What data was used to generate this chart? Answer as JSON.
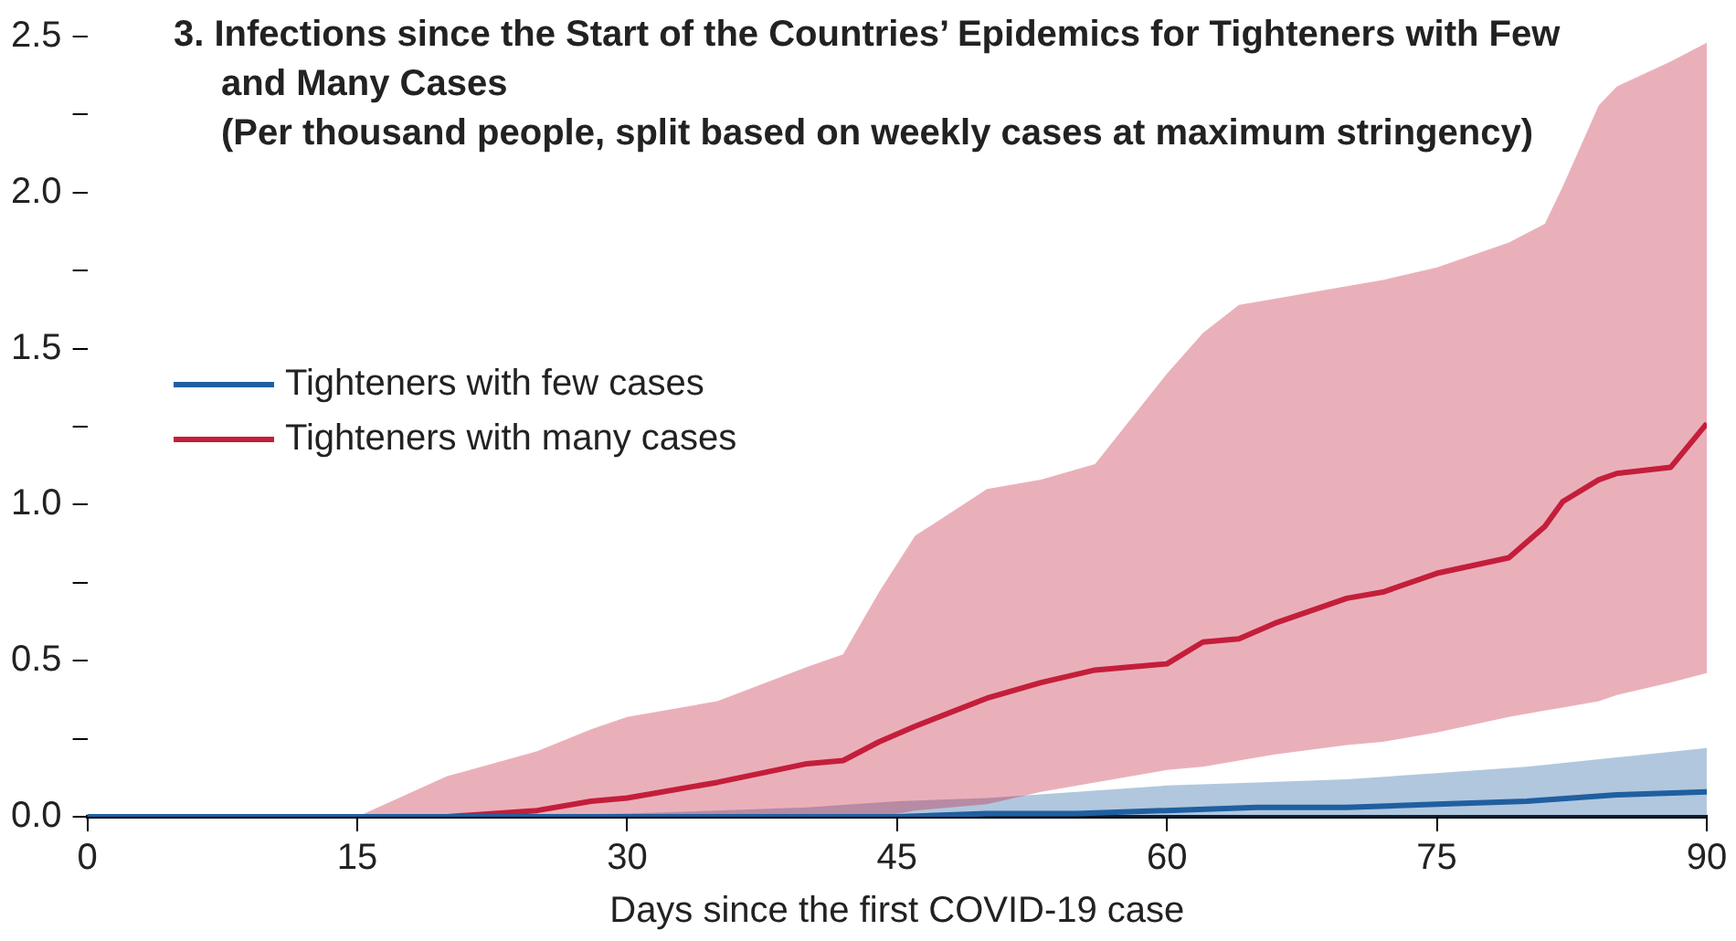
{
  "chart_data": {
    "type": "line",
    "title": "3. Infections since the Start of the Countries’ Epidemics for Tighteners with Few and Many Cases",
    "subtitle": "(Per thousand people, split based on weekly cases at maximum stringency)",
    "xlabel": "Days since the first COVID-19 case",
    "xlim": [
      0,
      90
    ],
    "xticks": [
      0,
      15,
      30,
      45,
      60,
      75,
      90
    ],
    "ylim": [
      0,
      2.5
    ],
    "yticks": [
      {
        "value": 0,
        "label": "0.0"
      },
      {
        "value": 0.25,
        "label": null
      },
      0.5,
      {
        "value": 0.75,
        "label": null
      },
      {
        "value": 1,
        "label": "1.0"
      },
      {
        "value": 1.25,
        "label": null
      },
      1.5,
      {
        "value": 1.75,
        "label": null
      },
      {
        "value": 2,
        "label": "2.0"
      },
      {
        "value": 2.25,
        "label": null
      },
      2.5
    ],
    "grid": false,
    "legend": "left",
    "marker": "none",
    "series": [
      {
        "name": "Tighteners with few cases",
        "color": "#1f5fa0",
        "x": [
          0,
          20,
          30,
          40,
          45,
          50,
          55,
          60,
          65,
          70,
          75,
          80,
          85,
          90
        ],
        "values": [
          0,
          0,
          0,
          0,
          0,
          0.01,
          0.01,
          0.02,
          0.03,
          0.03,
          0.04,
          0.05,
          0.07,
          0.08
        ],
        "lower": [
          0,
          0,
          0,
          0,
          0,
          0,
          0,
          0,
          0,
          0,
          0,
          0,
          0,
          0
        ],
        "upper": [
          0,
          0,
          0.01,
          0.03,
          0.05,
          0.06,
          0.08,
          0.1,
          0.11,
          0.12,
          0.14,
          0.16,
          0.19,
          0.22
        ]
      },
      {
        "name": "Tighteners with many cases",
        "color": "#c41e3a",
        "x": [
          0,
          15,
          20,
          25,
          28,
          30,
          35,
          40,
          42,
          44,
          46,
          50,
          53,
          56,
          60,
          62,
          64,
          66,
          70,
          72,
          75,
          79,
          81,
          82,
          84,
          85,
          88,
          90
        ],
        "values": [
          0,
          0,
          0,
          0.02,
          0.05,
          0.06,
          0.11,
          0.17,
          0.18,
          0.24,
          0.29,
          0.38,
          0.43,
          0.47,
          0.49,
          0.56,
          0.57,
          0.62,
          0.7,
          0.72,
          0.78,
          0.83,
          0.93,
          1.01,
          1.08,
          1.1,
          1.12,
          1.26
        ],
        "lower": [
          0,
          0,
          0,
          0,
          0,
          0,
          0,
          0,
          0,
          0,
          0.02,
          0.04,
          0.08,
          0.11,
          0.15,
          0.16,
          0.18,
          0.2,
          0.23,
          0.24,
          0.27,
          0.32,
          0.34,
          0.35,
          0.37,
          0.39,
          0.43,
          0.46
        ],
        "upper": [
          0,
          0,
          0.13,
          0.21,
          0.28,
          0.32,
          0.37,
          0.48,
          0.52,
          0.72,
          0.9,
          1.05,
          1.08,
          1.13,
          1.42,
          1.55,
          1.64,
          1.66,
          1.7,
          1.72,
          1.76,
          1.84,
          1.9,
          2.02,
          2.28,
          2.34,
          2.42,
          2.48
        ]
      }
    ]
  }
}
